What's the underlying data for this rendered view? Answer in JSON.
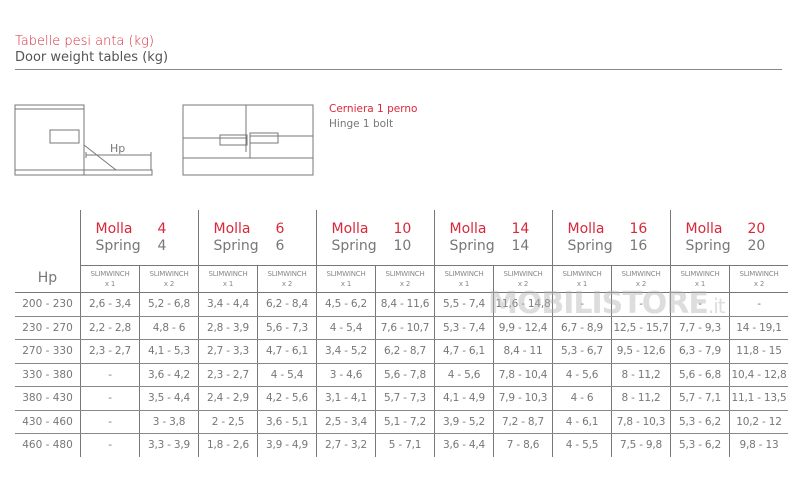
{
  "title_it": "Tabelle pesi anta (kg)",
  "title_en": "Door weight tables (kg)",
  "diagram": {
    "hp_label": "Hp"
  },
  "hinge": {
    "it": "Cerniera 1 perno",
    "en": "Hinge 1 bolt"
  },
  "table": {
    "hp_header": "Hp",
    "groups": [
      {
        "it": "Molla",
        "en": "Spring",
        "n": "4"
      },
      {
        "it": "Molla",
        "en": "Spring",
        "n": "6"
      },
      {
        "it": "Molla",
        "en": "Spring",
        "n": "10"
      },
      {
        "it": "Molla",
        "en": "Spring",
        "n": "14"
      },
      {
        "it": "Molla",
        "en": "Spring",
        "n": "16"
      },
      {
        "it": "Molla",
        "en": "Spring",
        "n": "20"
      }
    ],
    "sub": {
      "name": "SLIMWINCH",
      "x1": "x 1",
      "x2": "x 2"
    },
    "rows": [
      {
        "hp": "200 - 230",
        "cells": [
          "2,6 - 3,4",
          "5,2 - 6,8",
          "3,4 - 4,4",
          "6,2 - 8,4",
          "4,5 - 6,2",
          "8,4 - 11,6",
          "5,5 - 7,4",
          "11,6 - 14,8",
          "-",
          "-",
          "-",
          "-"
        ]
      },
      {
        "hp": "230 - 270",
        "cells": [
          "2,2 - 2,8",
          "4,8 - 6",
          "2,8 - 3,9",
          "5,6 - 7,3",
          "4 - 5,4",
          "7,6 - 10,7",
          "5,3 - 7,4",
          "9,9 - 12,4",
          "6,7 - 8,9",
          "12,5 - 15,7",
          "7,7 - 9,3",
          "14 - 19,1"
        ]
      },
      {
        "hp": "270 - 330",
        "cells": [
          "2,3 - 2,7",
          "4,1 - 5,3",
          "2,7 - 3,3",
          "4,7 - 6,1",
          "3,4 - 5,2",
          "6,2 - 8,7",
          "4,7 - 6,1",
          "8,4 - 11",
          "5,3 - 6,7",
          "9,5 - 12,6",
          "6,3 - 7,9",
          "11,8 - 15"
        ]
      },
      {
        "hp": "330 - 380",
        "cells": [
          "-",
          "3,6 - 4,2",
          "2,3 - 2,7",
          "4 - 5,4",
          "3 - 4,6",
          "5,6 - 7,8",
          "4 - 5,6",
          "7,8 - 10,4",
          "4 - 5,6",
          "8 - 11,2",
          "5,6 - 6,8",
          "10,4 - 12,8"
        ]
      },
      {
        "hp": "380 - 430",
        "cells": [
          "-",
          "3,5 - 4,4",
          "2,4 - 2,9",
          "4,2 - 5,6",
          "3,1 - 4,1",
          "5,7 - 7,3",
          "4,1 - 4,9",
          "7,9 - 10,3",
          "4 - 6",
          "8 - 11,2",
          "5,7 - 7,1",
          "11,1 - 13,5"
        ]
      },
      {
        "hp": "430 - 460",
        "cells": [
          "-",
          "3 - 3,8",
          "2 - 2,5",
          "3,6 - 5,1",
          "2,5 - 3,4",
          "5,1 - 7,2",
          "3,9 - 5,2",
          "7,2 - 8,7",
          "4 - 6,1",
          "7,8 - 10,3",
          "5,3 - 6,2",
          "10,2 - 12"
        ]
      },
      {
        "hp": "460 - 480",
        "cells": [
          "-",
          "3,3 - 3,9",
          "1,8 - 2,6",
          "3,9 - 4,9",
          "2,7 - 3,2",
          "5 - 7,1",
          "3,6 - 4,4",
          "7 - 8,6",
          "4 - 5,5",
          "7,5 - 9,8",
          "5,3 - 6,2",
          "9,8 - 13"
        ]
      }
    ]
  },
  "watermark": {
    "main": "MOBILISTORE",
    "suffix": ".it"
  },
  "colors": {
    "accent": "#d9283a",
    "text": "#666666"
  }
}
